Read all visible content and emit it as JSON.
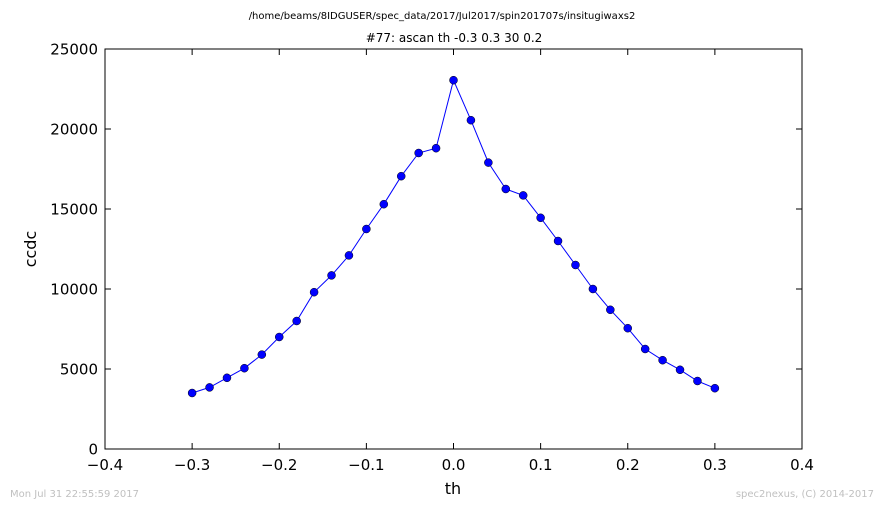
{
  "figure": {
    "suptitle": "/home/beams/8IDGUSER/spec_data/2017/Jul2017/spin201707s/insitugiwaxs2",
    "footer_left": "Mon Jul 31 22:55:59 2017",
    "footer_right": "spec2nexus, (C) 2014-2017"
  },
  "chart_data": {
    "type": "line",
    "title": "#77: ascan  th -0.3 0.3  30 0.2",
    "xlabel": "th",
    "ylabel": "ccdc",
    "xlim": [
      -0.4,
      0.4
    ],
    "ylim": [
      0,
      25000
    ],
    "xticks": [
      -0.4,
      -0.3,
      -0.2,
      -0.1,
      0.0,
      0.1,
      0.2,
      0.3,
      0.4
    ],
    "xtick_labels": [
      "−0.4",
      "−0.3",
      "−0.2",
      "−0.1",
      "0.0",
      "0.1",
      "0.2",
      "0.3",
      "0.4"
    ],
    "yticks": [
      0,
      5000,
      10000,
      15000,
      20000,
      25000
    ],
    "ytick_labels": [
      "0",
      "5000",
      "10000",
      "15000",
      "20000",
      "25000"
    ],
    "grid": false,
    "series": [
      {
        "color": "#0000ff",
        "marker": "circle",
        "x": [
          -0.3,
          -0.28,
          -0.26,
          -0.24,
          -0.22,
          -0.2,
          -0.18,
          -0.16,
          -0.14,
          -0.12,
          -0.1,
          -0.08,
          -0.06,
          -0.04,
          -0.02,
          0.0,
          0.02,
          0.04,
          0.06,
          0.08,
          0.1,
          0.12,
          0.14,
          0.16,
          0.18,
          0.2,
          0.22,
          0.24,
          0.26,
          0.28,
          0.3
        ],
        "y": [
          3500,
          3850,
          4450,
          5050,
          5900,
          7000,
          8000,
          9800,
          10850,
          12100,
          13750,
          15300,
          17050,
          18500,
          18800,
          23050,
          20550,
          17900,
          16250,
          15850,
          14450,
          13000,
          11500,
          10000,
          8700,
          7550,
          6250,
          5550,
          4950,
          4250,
          3800
        ]
      }
    ]
  }
}
